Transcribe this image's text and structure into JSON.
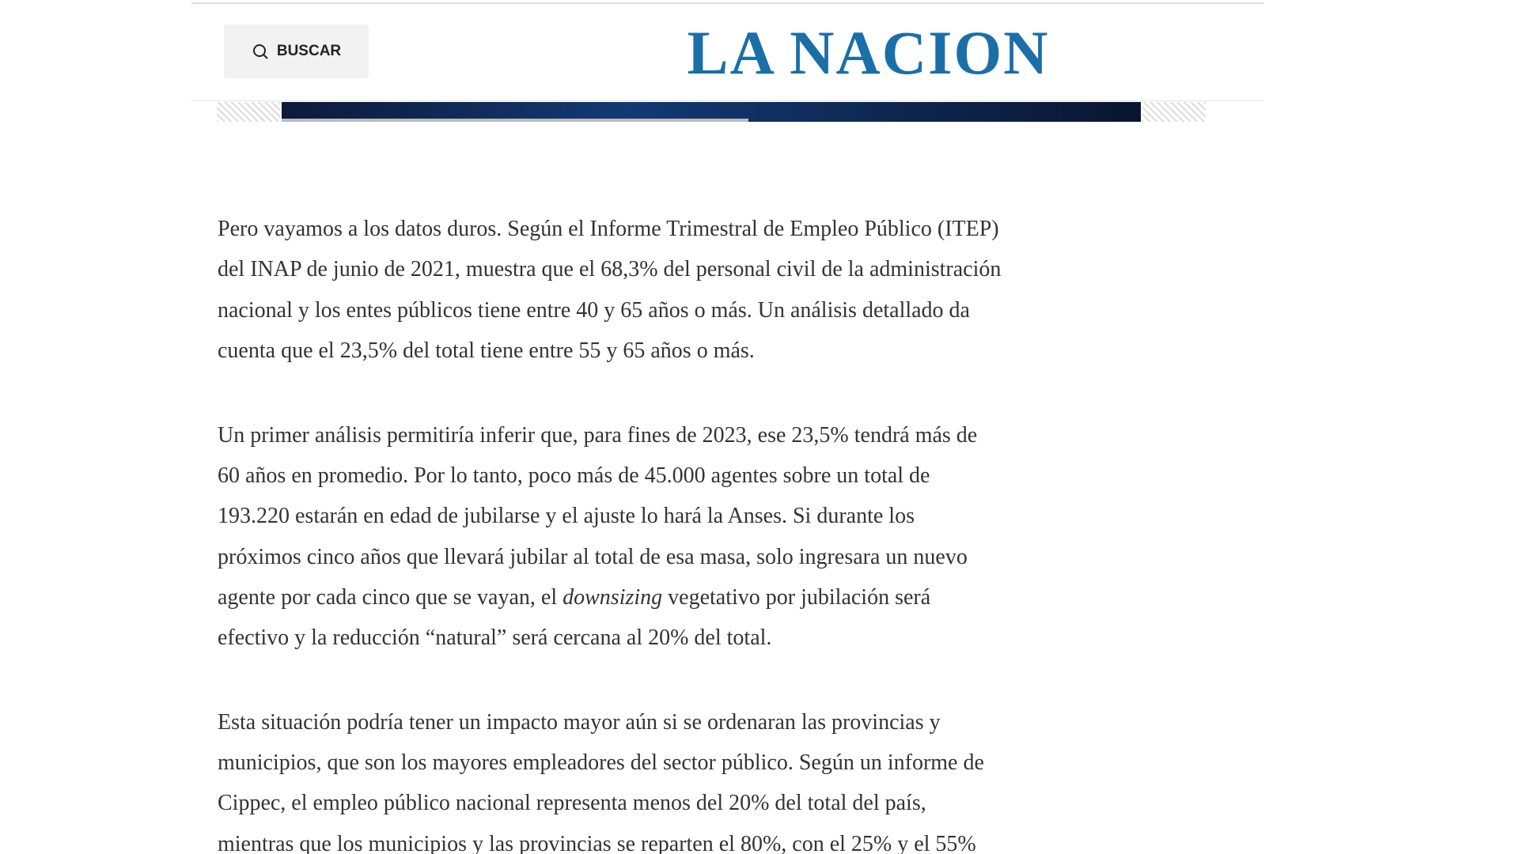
{
  "header": {
    "search_button": "BUSCAR",
    "logo": "LA NACION"
  },
  "article": {
    "paragraphs": [
      {
        "lines": [
          "Pero vayamos a los datos duros. Según el Informe Trimestral de Empleo Público (ITEP)",
          "del INAP de junio de 2021, muestra que el 68,3% del personal civil de la administración",
          "nacional y los entes públicos tiene entre 40 y 65 años o más. Un análisis detallado da",
          "cuenta que el 23,5% del total tiene entre 55 y 65 años o más."
        ]
      },
      {
        "lines": [
          "Un primer análisis permitiría inferir que, para fines de 2023, ese 23,5% tendrá más de",
          "60 años en promedio. Por lo tanto, poco más de 45.000 agentes sobre un total de",
          "193.220 estarán en edad de jubilarse y el ajuste lo hará la Anses. Si durante los",
          "próximos cinco años que llevará jubilar al total de esa masa, solo ingresara un nuevo",
          {
            "before": "agente por cada cinco que se vayan, el ",
            "italic": "downsizing",
            "after": " vegetativo por jubilación será"
          },
          "efectivo y la reducción “natural” será cercana al 20% del total."
        ]
      },
      {
        "lines": [
          "Esta situación podría tener un impacto mayor aún si se ordenaran las provincias y",
          "municipios, que son los mayores empleadores del sector público. Según un informe de",
          "Cippec, el empleo público nacional representa menos del 20% del total del país,",
          "mientras que los municipios y las provincias se reparten el 80%, con el 25% y el 55%"
        ]
      }
    ]
  }
}
